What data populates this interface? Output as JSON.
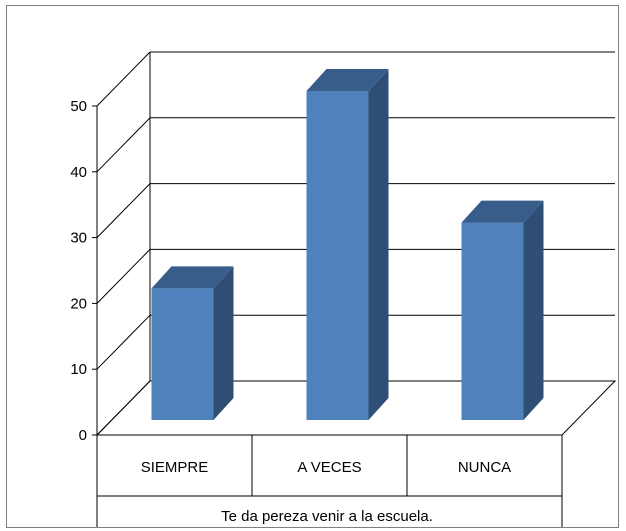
{
  "chart_data": {
    "type": "bar",
    "categories": [
      "SIEMPRE",
      "A VECES",
      "NUNCA"
    ],
    "values": [
      20,
      50,
      30
    ],
    "xlabel": "Te da pereza venir a la escuela.",
    "ylabel": "",
    "ylim": [
      0,
      50
    ],
    "yticks": [
      0,
      10,
      20,
      30,
      40,
      50
    ],
    "grid": true,
    "style": "3d-column",
    "colors": {
      "bar_front": "#4f81bd",
      "bar_side": "#2f4e75",
      "bar_top": "#385d8a",
      "grid": "#000000"
    }
  }
}
